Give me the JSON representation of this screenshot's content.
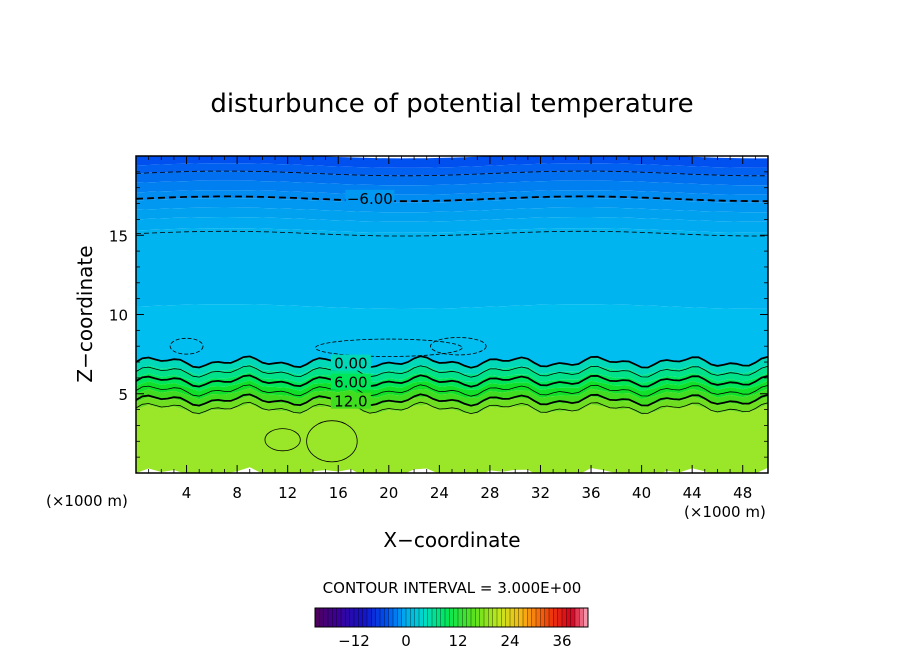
{
  "chart_data": {
    "type": "heatmap",
    "title": "disturbunce of potential temperature",
    "xlabel": "X−coordinate",
    "ylabel": "Z−coordinate",
    "xunit": "(×1000 m)",
    "xunit_bottom": "(×1000 m)",
    "xlim": [
      0,
      50
    ],
    "ylim": [
      0,
      20
    ],
    "xticks": [
      4,
      8,
      12,
      16,
      20,
      24,
      28,
      32,
      36,
      40,
      44,
      48
    ],
    "yticks": [
      5,
      10,
      15
    ],
    "contour_interval_text": "CONTOUR INTERVAL = 3.000E+00",
    "contour_labels": [
      {
        "text": "−6.00",
        "x": 18.5,
        "y": 17.3
      },
      {
        "text": "0.00",
        "x": 17.0,
        "y": 6.9
      },
      {
        "text": "6.00",
        "x": 17.0,
        "y": 5.7
      },
      {
        "text": "12.0",
        "x": 17.0,
        "y": 4.5
      }
    ],
    "colorbar": {
      "range": [
        -21,
        42
      ],
      "ticks": [
        -12,
        0,
        12,
        24,
        36
      ],
      "tick_labels": [
        "−12",
        "0",
        "12",
        "24",
        "36"
      ]
    },
    "layers": [
      {
        "z_top": 20.0,
        "z_bottom": 19.4,
        "color": "#0050f0"
      },
      {
        "z_top": 19.4,
        "z_bottom": 18.9,
        "color": "#0060f0"
      },
      {
        "z_top": 18.9,
        "z_bottom": 18.3,
        "color": "#0070f0"
      },
      {
        "z_top": 18.3,
        "z_bottom": 17.7,
        "color": "#0080f0"
      },
      {
        "z_top": 17.7,
        "z_bottom": 17.2,
        "color": "#008cf0"
      },
      {
        "z_top": 17.2,
        "z_bottom": 16.6,
        "color": "#0098f0"
      },
      {
        "z_top": 16.6,
        "z_bottom": 16.0,
        "color": "#00a2f0"
      },
      {
        "z_top": 16.0,
        "z_bottom": 15.3,
        "color": "#00aaf0"
      },
      {
        "z_top": 15.3,
        "z_bottom": 10.5,
        "color": "#00b4f0"
      },
      {
        "z_top": 10.5,
        "z_bottom": 7.0,
        "color": "#00bef0"
      },
      {
        "z_top": 7.0,
        "z_bottom": 6.5,
        "color": "#00d8b8"
      },
      {
        "z_top": 6.5,
        "z_bottom": 6.0,
        "color": "#00e28a"
      },
      {
        "z_top": 6.0,
        "z_bottom": 5.5,
        "color": "#00e65a"
      },
      {
        "z_top": 5.5,
        "z_bottom": 5.0,
        "color": "#10e02a"
      },
      {
        "z_top": 5.0,
        "z_bottom": 4.5,
        "color": "#40dc20"
      },
      {
        "z_top": 4.5,
        "z_bottom": 4.0,
        "color": "#70de20"
      },
      {
        "z_top": 4.0,
        "z_bottom": 0.0,
        "color": "#9ae628"
      }
    ],
    "contours": [
      {
        "z": 18.9,
        "style": "dashed-thin"
      },
      {
        "z": 17.3,
        "style": "dashed-thick"
      },
      {
        "z": 15.1,
        "style": "dashed-thin"
      },
      {
        "z": 7.0,
        "style": "solid-thick"
      },
      {
        "z": 6.4,
        "style": "solid-thin"
      },
      {
        "z": 5.8,
        "style": "solid-thick"
      },
      {
        "z": 5.2,
        "style": "solid-thin"
      },
      {
        "z": 4.6,
        "style": "solid-thick"
      },
      {
        "z": 4.1,
        "style": "solid-thin"
      }
    ]
  }
}
